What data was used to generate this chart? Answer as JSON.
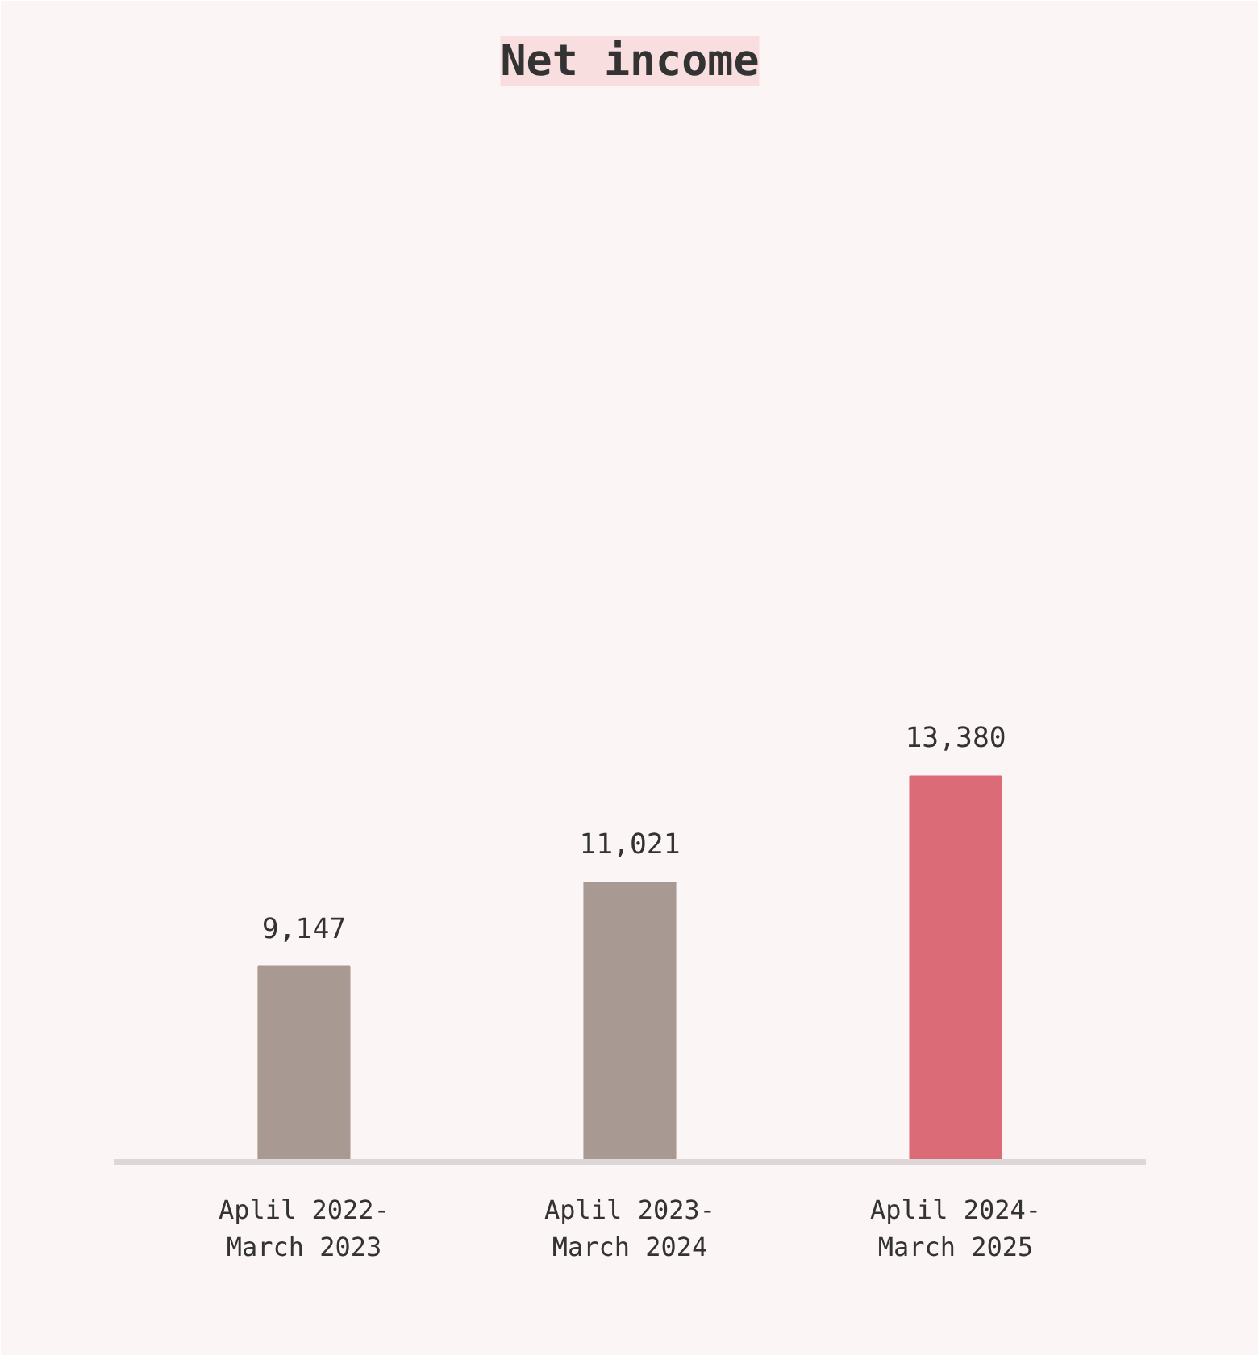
{
  "chart_data": {
    "type": "bar",
    "title": "Net income",
    "categories": [
      "Aplil 2022-\nMarch 2023",
      "Aplil 2023-\nMarch 2024",
      "Aplil 2024-\nMarch 2025"
    ],
    "values": [
      9147,
      11021,
      13380
    ],
    "colors": [
      "#a89a92",
      "#a89a92",
      "#dc6b78"
    ],
    "value_labels": [
      "9,147",
      "11,021",
      "13,380"
    ],
    "ylim": [
      4800,
      28000
    ],
    "tick_labels": "x",
    "grid": false
  }
}
